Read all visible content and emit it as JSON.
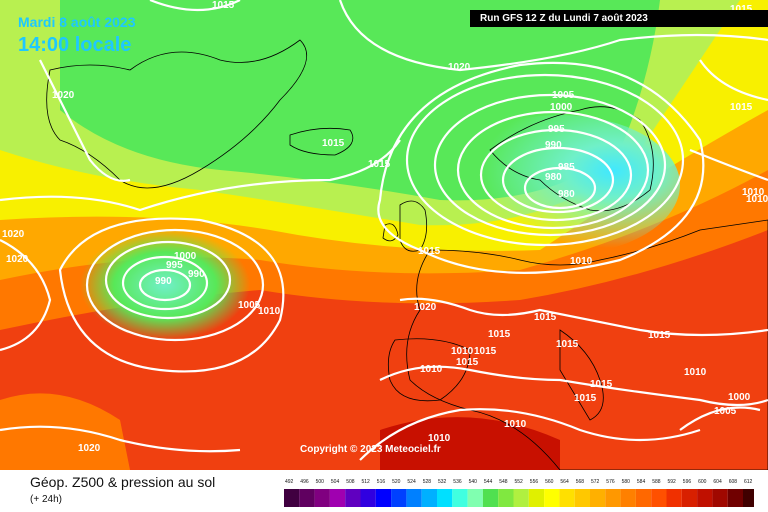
{
  "header": {
    "date_title": "Mardi 8 août 2023",
    "time_title": "14:00 locale",
    "run_info": "Run GFS 12 Z du Lundi 7 août 2023"
  },
  "map": {
    "copyright": "Copyright © 2023 Meteociel.fr",
    "isobar_labels": [
      "1015",
      "1015",
      "1020",
      "1020",
      "1005",
      "1000",
      "995",
      "990",
      "985",
      "980",
      "980",
      "1015",
      "1015",
      "1015",
      "1010",
      "1010",
      "1020",
      "1020",
      "1000",
      "995",
      "990",
      "990",
      "1005",
      "1010",
      "1020",
      "1015",
      "1010",
      "1015",
      "1015",
      "1015",
      "1015",
      "1015",
      "1010",
      "1010",
      "1015",
      "1015",
      "1010",
      "1010",
      "1000",
      "1005",
      "1010",
      "1015",
      "1020"
    ],
    "field_colors": {
      "very_low": "#40e8ff",
      "low": "#70f0c8",
      "mid_green": "#58e858",
      "light_green": "#b8f050",
      "yellow": "#f8f000",
      "orange": "#ffa800",
      "deep_orange": "#ff7800",
      "red": "#f04010",
      "dark_red": "#c81000"
    }
  },
  "footer": {
    "field_title": "Géop. Z500 & pression au sol",
    "lead_time": "(+ 24h)"
  },
  "legend": {
    "values": [
      "492",
      "496",
      "500",
      "504",
      "508",
      "512",
      "516",
      "520",
      "524",
      "528",
      "532",
      "536",
      "540",
      "544",
      "548",
      "552",
      "556",
      "560",
      "564",
      "568",
      "572",
      "576",
      "580",
      "584",
      "588",
      "592",
      "596",
      "600",
      "604",
      "608",
      "612"
    ],
    "colors": [
      "#400040",
      "#600060",
      "#800080",
      "#a000b0",
      "#6000c0",
      "#3000e0",
      "#0000ff",
      "#0040ff",
      "#0080ff",
      "#00b0ff",
      "#00e0ff",
      "#40ffe0",
      "#80ffb0",
      "#50e050",
      "#80e840",
      "#b0f040",
      "#e0f000",
      "#ffff00",
      "#ffe000",
      "#ffc800",
      "#ffb000",
      "#ff9800",
      "#ff8000",
      "#ff6800",
      "#ff5000",
      "#f03000",
      "#d82000",
      "#c01000",
      "#a00800",
      "#700000",
      "#400000"
    ]
  }
}
